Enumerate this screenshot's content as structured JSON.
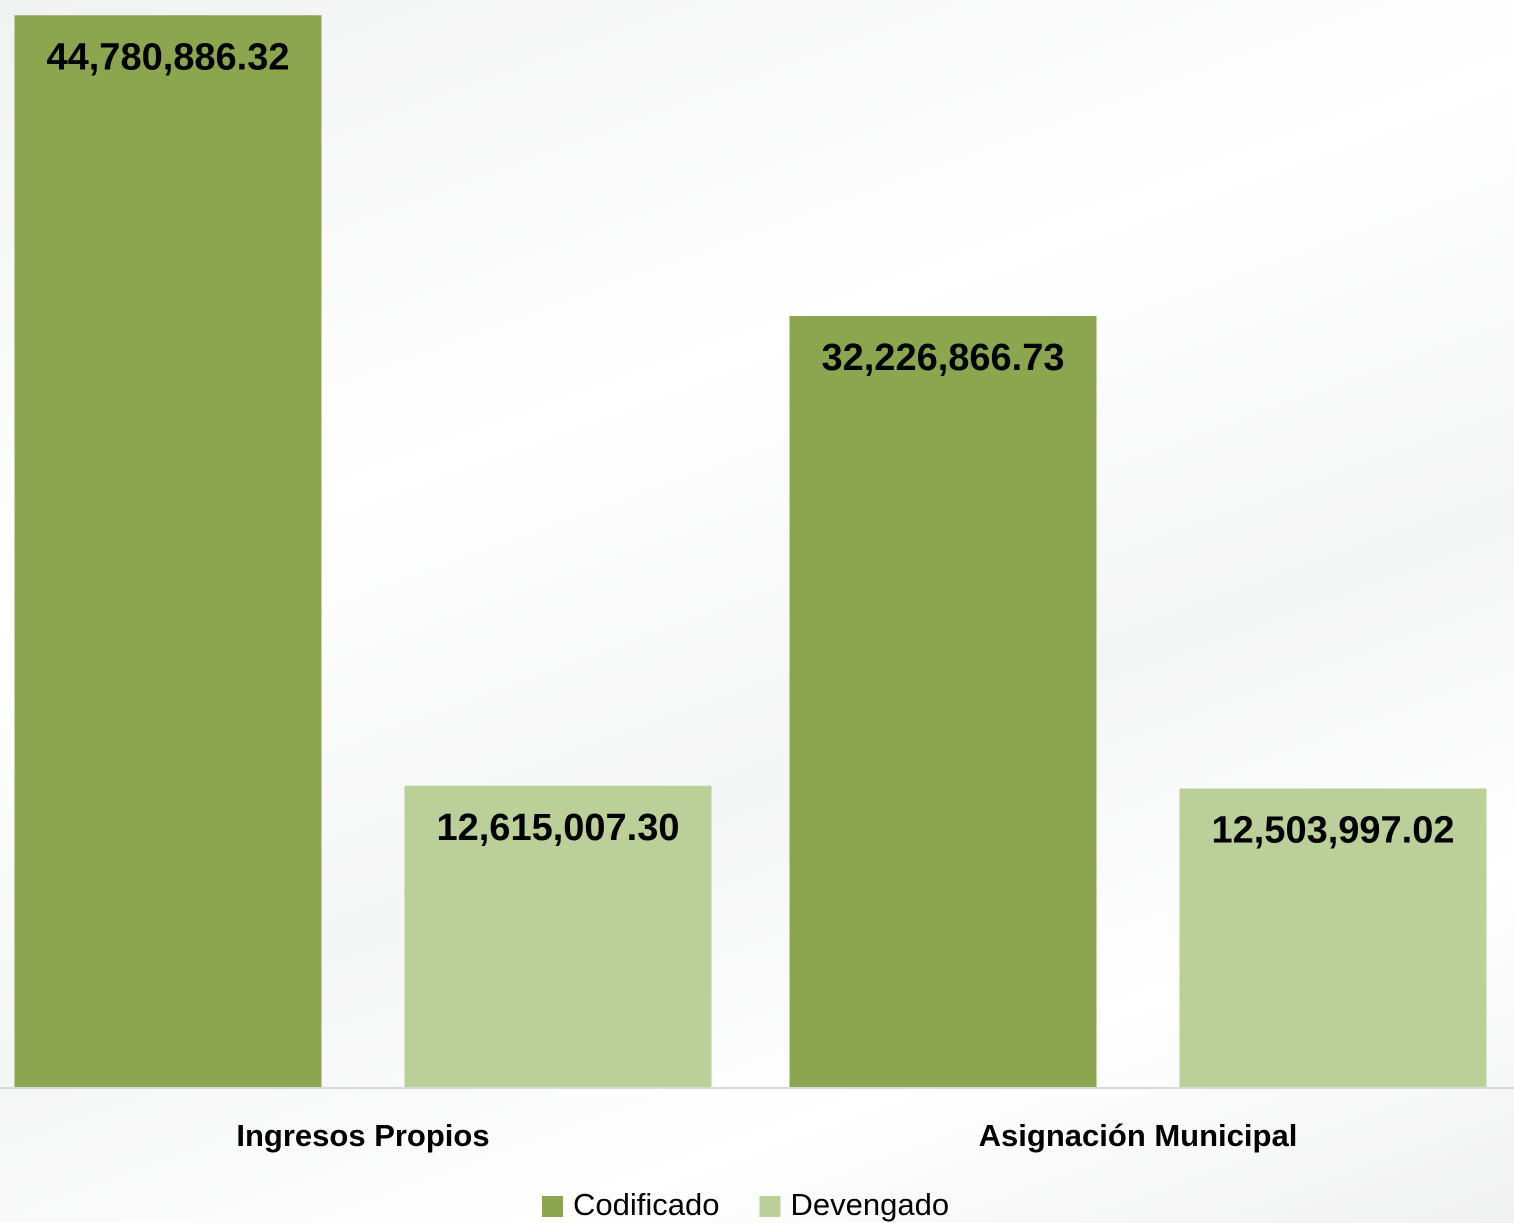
{
  "chart_data": {
    "type": "bar",
    "categories": [
      "Ingresos Propios",
      "Asignación Municipal"
    ],
    "series": [
      {
        "name": "Codificado",
        "color": "#8ba64e",
        "values": [
          44780886.32,
          32226866.73
        ],
        "value_labels": [
          "44,780,886.32",
          "32,226,866.73"
        ]
      },
      {
        "name": "Devengado",
        "color": "#bbcf98",
        "values": [
          12615007.3,
          12503997.02
        ],
        "value_labels": [
          "12,615,007.30",
          "12,503,997.02"
        ]
      }
    ],
    "ylim": [
      0,
      45000000
    ]
  }
}
